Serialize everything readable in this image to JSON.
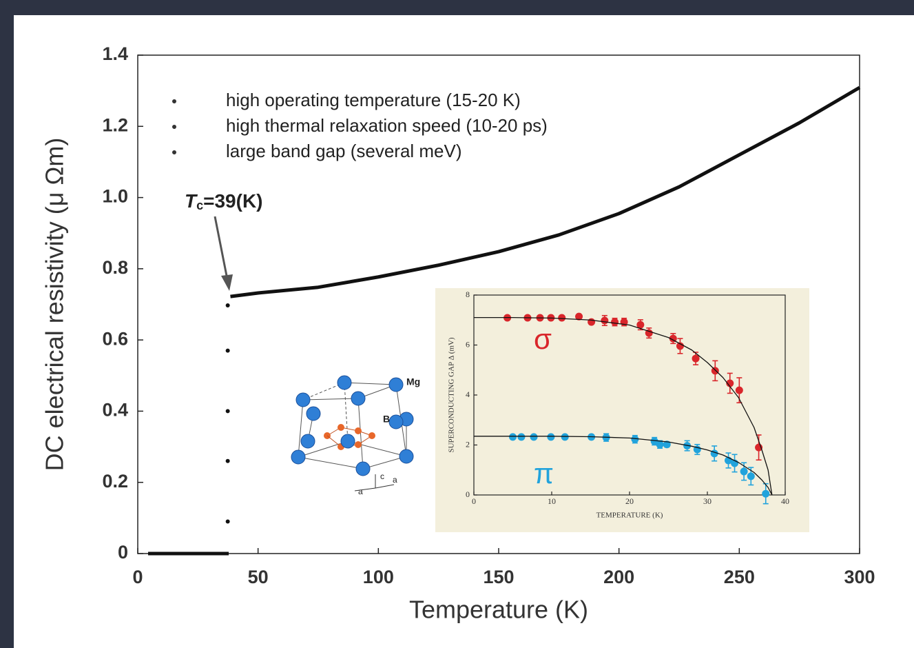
{
  "chart_data": [
    {
      "type": "line",
      "bullets": [
        "high operating temperature (15-20 K)",
        "high thermal relaxation speed (10-20 ps)",
        "large band gap (several meV)"
      ],
      "annotation": {
        "symbol": "T",
        "subscript": "c",
        "text": "=39(K)"
      },
      "x_label": "Temperature (K)",
      "y_label": "DC electrical resistivity (μ Ωm)",
      "xlim": [
        0,
        300
      ],
      "xticks": [
        0,
        50,
        100,
        150,
        200,
        250,
        300
      ],
      "ylim": [
        0,
        1.4
      ],
      "yticks": [
        0,
        0.2,
        0.4,
        0.6,
        0.8,
        {
          "value": 1,
          "label": "1.0"
        },
        1.2,
        1.4
      ],
      "series": [
        {
          "style": "line",
          "color": "#111111",
          "x": [
            4.3,
            20,
            37.8,
            38,
            38.5,
            50,
            75,
            100,
            125,
            150,
            175,
            200,
            225,
            250,
            275,
            300
          ],
          "values": [
            0,
            0,
            0,
            null,
            0.722,
            0.732,
            0.748,
            0.777,
            0.81,
            0.848,
            0.895,
            0.955,
            1.03,
            1.12,
            1.21,
            1.309
          ]
        },
        {
          "style": "points",
          "color": "#111111",
          "x": [
            37.4,
            37.4,
            37.4,
            37.4,
            37.4
          ],
          "values": [
            0.09,
            0.26,
            0.4,
            0.57,
            0.697
          ]
        }
      ]
    },
    {
      "type": "scatter",
      "x_label": "TEMPERATURE (K)",
      "y_label": "SUPERCONDUCTING GAP Δ (mV)",
      "xlim": [
        0,
        40
      ],
      "xticks": [
        0,
        10,
        20,
        30,
        40
      ],
      "ylim": [
        0,
        8
      ],
      "yticks": [
        0,
        2,
        4,
        6,
        8
      ],
      "series": [
        {
          "name": "σ",
          "color": "#d9262b",
          "x": [
            4.3,
            6.9,
            8.5,
            9.9,
            11.3,
            13.5,
            15.1,
            16.8,
            18.1,
            19.3,
            21.4,
            22.5,
            25.6,
            26.5,
            28.5,
            31,
            32.9,
            34.1,
            36.6
          ],
          "values": [
            7.09,
            7.09,
            7.09,
            7.09,
            7.09,
            7.14,
            6.92,
            6.98,
            6.92,
            6.92,
            6.81,
            6.48,
            6.26,
            5.96,
            5.46,
            4.97,
            4.47,
            4.19,
            1.9
          ],
          "errors": [
            0,
            0,
            0,
            0,
            0,
            0,
            0,
            0.2,
            0.15,
            0.15,
            0.2,
            0.2,
            0.2,
            0.3,
            0.25,
            0.4,
            0.4,
            0.5,
            0.5
          ]
        },
        {
          "name": "π",
          "color": "#21a3dc",
          "x": [
            5.0,
            6.1,
            7.7,
            9.9,
            11.7,
            15.1,
            17.0,
            20.7,
            23.2,
            23.9,
            24.8,
            27.4,
            28.7,
            30.9,
            32.7,
            33.5,
            34.7,
            35.6,
            37.5
          ],
          "values": [
            2.32,
            2.32,
            2.32,
            2.32,
            2.32,
            2.32,
            2.3,
            2.23,
            2.15,
            2.02,
            2.02,
            1.97,
            1.82,
            1.66,
            1.38,
            1.27,
            0.94,
            0.75,
            0.05
          ],
          "errors": [
            0,
            0,
            0,
            0,
            0,
            0,
            0.15,
            0.15,
            0.15,
            0.15,
            0.1,
            0.2,
            0.2,
            0.3,
            0.3,
            0.35,
            0.35,
            0.35,
            0.4
          ]
        },
        {
          "style": "line",
          "color": "#111111",
          "x": [
            0,
            5,
            10,
            15,
            20,
            25,
            28,
            30,
            32,
            34,
            35,
            36,
            37,
            37.8,
            38.3
          ],
          "values": [
            7.1,
            7.1,
            7.08,
            7.0,
            6.8,
            6.3,
            5.8,
            5.3,
            4.7,
            3.9,
            3.3,
            2.7,
            1.8,
            1.0,
            0
          ]
        },
        {
          "style": "line",
          "color": "#111111",
          "x": [
            0,
            5,
            10,
            15,
            20,
            25,
            28,
            30,
            32,
            34,
            35,
            36,
            37,
            37.8,
            38.3
          ],
          "values": [
            2.35,
            2.35,
            2.35,
            2.33,
            2.28,
            2.12,
            1.95,
            1.8,
            1.6,
            1.3,
            1.1,
            0.9,
            0.6,
            0.3,
            0
          ]
        }
      ]
    }
  ],
  "illustration": {
    "labels": [
      "Mg",
      "B",
      "c",
      "a",
      "a"
    ]
  }
}
